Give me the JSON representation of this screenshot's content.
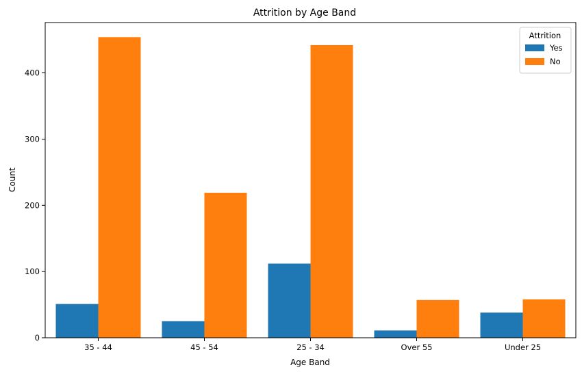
{
  "chart_data": {
    "type": "bar",
    "title": "Attrition by Age Band",
    "xlabel": "Age Band",
    "ylabel": "Count",
    "categories": [
      "35 - 44",
      "45 - 54",
      "25 - 34",
      "Over 55",
      "Under 25"
    ],
    "series": [
      {
        "name": "Yes",
        "color": "#1f77b4",
        "values": [
          51,
          25,
          112,
          11,
          38
        ]
      },
      {
        "name": "No",
        "color": "#ff7f0e",
        "values": [
          454,
          219,
          442,
          57,
          58
        ]
      }
    ],
    "yticks": [
      0,
      100,
      200,
      300,
      400
    ],
    "ylim": [
      0,
      476
    ],
    "grid": false,
    "legend": {
      "title": "Attrition",
      "position": "top-right"
    }
  }
}
